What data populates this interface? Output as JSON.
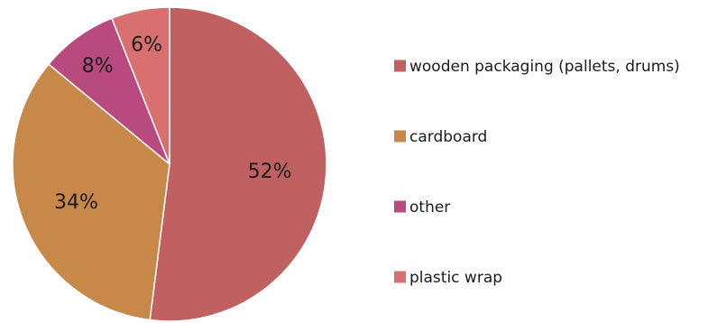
{
  "chart_data": {
    "type": "pie",
    "title": "",
    "legend_position": "right",
    "slices": [
      {
        "label": "wooden packaging (pallets, drums)",
        "value": 52,
        "display": "52%",
        "color": "#c06060"
      },
      {
        "label": "cardboard",
        "value": 34,
        "display": "34%",
        "color": "#c8884a"
      },
      {
        "label": "other",
        "value": 8,
        "display": "8%",
        "color": "#b84a80"
      },
      {
        "label": "plastic wrap",
        "value": 6,
        "display": "6%",
        "color": "#d87070"
      }
    ]
  }
}
